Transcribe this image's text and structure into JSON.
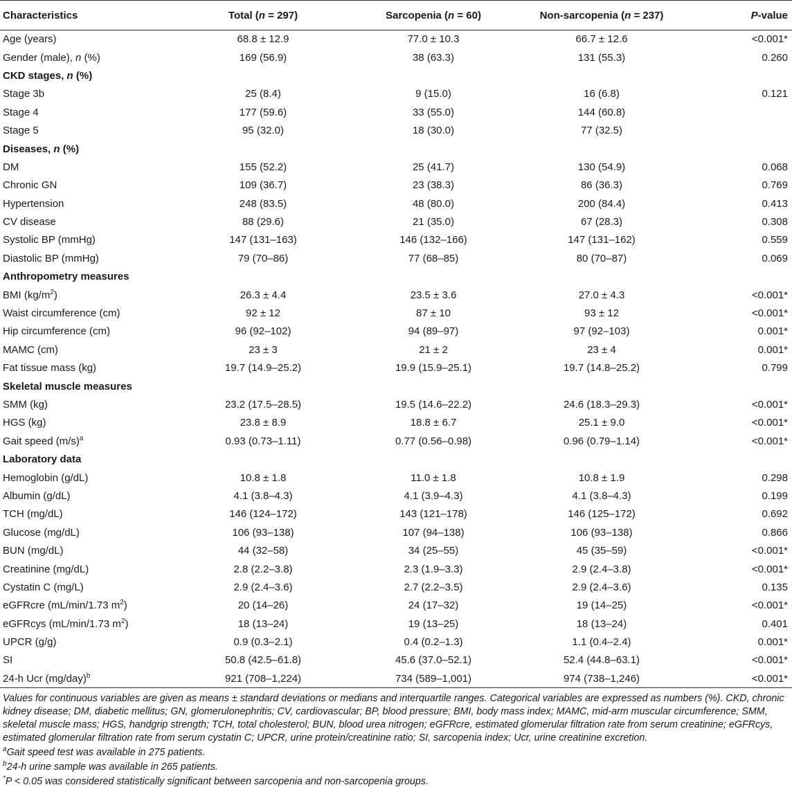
{
  "header": {
    "characteristics": "Characteristics",
    "total_label": "Total (",
    "total_n": "n",
    "total_eq": " = 297)",
    "sarc_label": "Sarcopenia (",
    "sarc_n": "n",
    "sarc_eq": " = 60)",
    "non_label": "Non-sarcopenia (",
    "non_n": "n",
    "non_eq": " = 237)",
    "p_italic": "P",
    "p_rest": "-value"
  },
  "rows": [
    {
      "label": "Age (years)",
      "total": "68.8 ± 12.9",
      "sarc": "77.0 ± 10.3",
      "non": "66.7 ± 12.6",
      "p": "<0.001*"
    },
    {
      "label_pre": "Gender (male), ",
      "label_it": "n",
      "label_post": " (%)",
      "total": "169 (56.9)",
      "sarc": "38 (63.3)",
      "non": "131 (55.3)",
      "p": "0.260"
    },
    {
      "section_pre": "CKD stages, ",
      "section_it": "n",
      "section_post": " (%)"
    },
    {
      "label": "Stage 3b",
      "total": "25 (8.4)",
      "sarc": "9 (15.0)",
      "non": "16 (6.8)",
      "p": "0.121"
    },
    {
      "label": "Stage 4",
      "total": "177 (59.6)",
      "sarc": "33 (55.0)",
      "non": "144 (60.8)",
      "p": ""
    },
    {
      "label": "Stage 5",
      "total": "95 (32.0)",
      "sarc": "18 (30.0)",
      "non": "77 (32.5)",
      "p": ""
    },
    {
      "section_pre": "Diseases, ",
      "section_it": "n",
      "section_post": " (%)"
    },
    {
      "label": "DM",
      "total": "155 (52.2)",
      "sarc": "25 (41.7)",
      "non": "130 (54.9)",
      "p": "0.068"
    },
    {
      "label": "Chronic GN",
      "total": "109 (36.7)",
      "sarc": "23 (38.3)",
      "non": "86 (36.3)",
      "p": "0.769"
    },
    {
      "label": "Hypertension",
      "total": "248 (83.5)",
      "sarc": "48 (80.0)",
      "non": "200 (84.4)",
      "p": "0.413"
    },
    {
      "label": "CV disease",
      "total": "88 (29.6)",
      "sarc": "21 (35.0)",
      "non": "67 (28.3)",
      "p": "0.308"
    },
    {
      "label": "Systolic BP (mmHg)",
      "total": "147 (131–163)",
      "sarc": "146 (132–166)",
      "non": "147 (131–162)",
      "p": "0.559"
    },
    {
      "label": "Diastolic BP (mmHg)",
      "total": "79 (70–86)",
      "sarc": "77 (68–85)",
      "non": "80 (70–87)",
      "p": "0.069"
    },
    {
      "section": "Anthropometry measures"
    },
    {
      "label_pre": "BMI (kg/m",
      "label_sup": "2",
      "label_post": ")",
      "total": "26.3 ± 4.4",
      "sarc": "23.5 ± 3.6",
      "non": "27.0 ± 4.3",
      "p": "<0.001*"
    },
    {
      "label": "Waist circumference (cm)",
      "total": "92 ± 12",
      "sarc": "87 ± 10",
      "non": "93 ± 12",
      "p": "<0.001*"
    },
    {
      "label": "Hip circumference (cm)",
      "total": "96 (92–102)",
      "sarc": "94 (89–97)",
      "non": "97 (92–103)",
      "p": "0.001*"
    },
    {
      "label": "MAMC (cm)",
      "total": "23 ± 3",
      "sarc": "21 ± 2",
      "non": "23 ± 4",
      "p": "0.001*"
    },
    {
      "label": "Fat tissue mass (kg)",
      "total": "19.7 (14.9–25.2)",
      "sarc": "19.9 (15.9–25.1)",
      "non": "19.7 (14.8–25.2)",
      "p": "0.799"
    },
    {
      "section": "Skeletal muscle measures"
    },
    {
      "label": "SMM (kg)",
      "total": "23.2 (17.5–28.5)",
      "sarc": "19.5 (14.6–22.2)",
      "non": "24.6 (18.3–29.3)",
      "p": "<0.001*"
    },
    {
      "label": "HGS (kg)",
      "total": "23.8 ± 8.9",
      "sarc": "18.8 ± 6.7",
      "non": "25.1 ± 9.0",
      "p": "<0.001*"
    },
    {
      "label_pre": "Gait speed (m/s)",
      "label_sup": "a",
      "label_post": "",
      "total": "0.93 (0.73–1.11)",
      "sarc": "0.77 (0.56–0.98)",
      "non": "0.96 (0.79–1.14)",
      "p": "<0.001*"
    },
    {
      "section": "Laboratory data"
    },
    {
      "label": "Hemoglobin (g/dL)",
      "total": "10.8 ± 1.8",
      "sarc": "11.0 ± 1.8",
      "non": "10.8 ± 1.9",
      "p": "0.298"
    },
    {
      "label": "Albumin (g/dL)",
      "total": "4.1 (3.8–4.3)",
      "sarc": "4.1 (3.9–4.3)",
      "non": "4.1 (3.8–4.3)",
      "p": "0.199"
    },
    {
      "label": "TCH (mg/dL)",
      "total": "146 (124–172)",
      "sarc": "143 (121–178)",
      "non": "146 (125–172)",
      "p": "0.692"
    },
    {
      "label": "Glucose (mg/dL)",
      "total": "106 (93–138)",
      "sarc": "107 (94–138)",
      "non": "106 (93–138)",
      "p": "0.866"
    },
    {
      "label": "BUN (mg/dL)",
      "total": "44 (32–58)",
      "sarc": "34 (25–55)",
      "non": "45 (35–59)",
      "p": "<0.001*"
    },
    {
      "label": "Creatinine (mg/dL)",
      "total": "2.8 (2.2–3.8)",
      "sarc": "2.3 (1.9–3.3)",
      "non": "2.9 (2.4–3.8)",
      "p": "<0.001*"
    },
    {
      "label": "Cystatin C (mg/L)",
      "total": "2.9 (2.4–3.6)",
      "sarc": "2.7 (2.2–3.5)",
      "non": "2.9 (2.4–3.6)",
      "p": "0.135"
    },
    {
      "label_pre": "eGFRcre (mL/min/1.73 m",
      "label_sup": "2",
      "label_post": ")",
      "total": "20 (14–26)",
      "sarc": "24 (17–32)",
      "non": "19 (14–25)",
      "p": "<0.001*"
    },
    {
      "label_pre": "eGFRcys (mL/min/1.73 m",
      "label_sup": "2",
      "label_post": ")",
      "total": "18 (13–24)",
      "sarc": "19 (13–25)",
      "non": "18 (13–24)",
      "p": "0.401"
    },
    {
      "label": "UPCR (g/g)",
      "total": "0.9 (0.3–2.1)",
      "sarc": "0.4 (0.2–1.3)",
      "non": "1.1 (0.4–2.4)",
      "p": "0.001*"
    },
    {
      "label": "SI",
      "total": "50.8 (42.5–61.8)",
      "sarc": "45.6 (37.0–52.1)",
      "non": "52.4 (44.8–63.1)",
      "p": "<0.001*"
    },
    {
      "label_pre": "24-h Ucr (mg/day)",
      "label_sup": "b",
      "label_post": "",
      "total": "921 (708–1,224)",
      "sarc": "734 (589–1,001)",
      "non": "974 (738–1,246)",
      "p": "<0.001*"
    }
  ],
  "notes": {
    "main": "Values for continuous variables are given as means ± standard deviations or medians and interquartile ranges. Categorical variables are expressed as numbers (%). CKD, chronic kidney disease; DM, diabetic mellitus; GN, glomerulonephritis; CV, cardiovascular; BP, blood pressure; BMI, body mass index; MAMC, mid-arm muscular circumference; SMM, skeletal muscle mass; HGS, handgrip strength; TCH, total cholesterol; BUN, blood urea nitrogen; eGFRcre, estimated glomerular filtration rate from serum creatinine; eGFRcys, estimated glomerular filtration rate from serum cystatin C; UPCR, urine protein/creatinine ratio; SI, sarcopenia index; Ucr, urine creatinine excretion.",
    "a_mark": "a",
    "a_text": "Gait speed test was available in 275 patients.",
    "b_mark": "b",
    "b_text": "24-h urine sample was available in 265 patients.",
    "star_mark": "*",
    "star_p": "P",
    "star_text": " < 0.05 was considered statistically significant between sarcopenia and non-sarcopenia groups."
  }
}
